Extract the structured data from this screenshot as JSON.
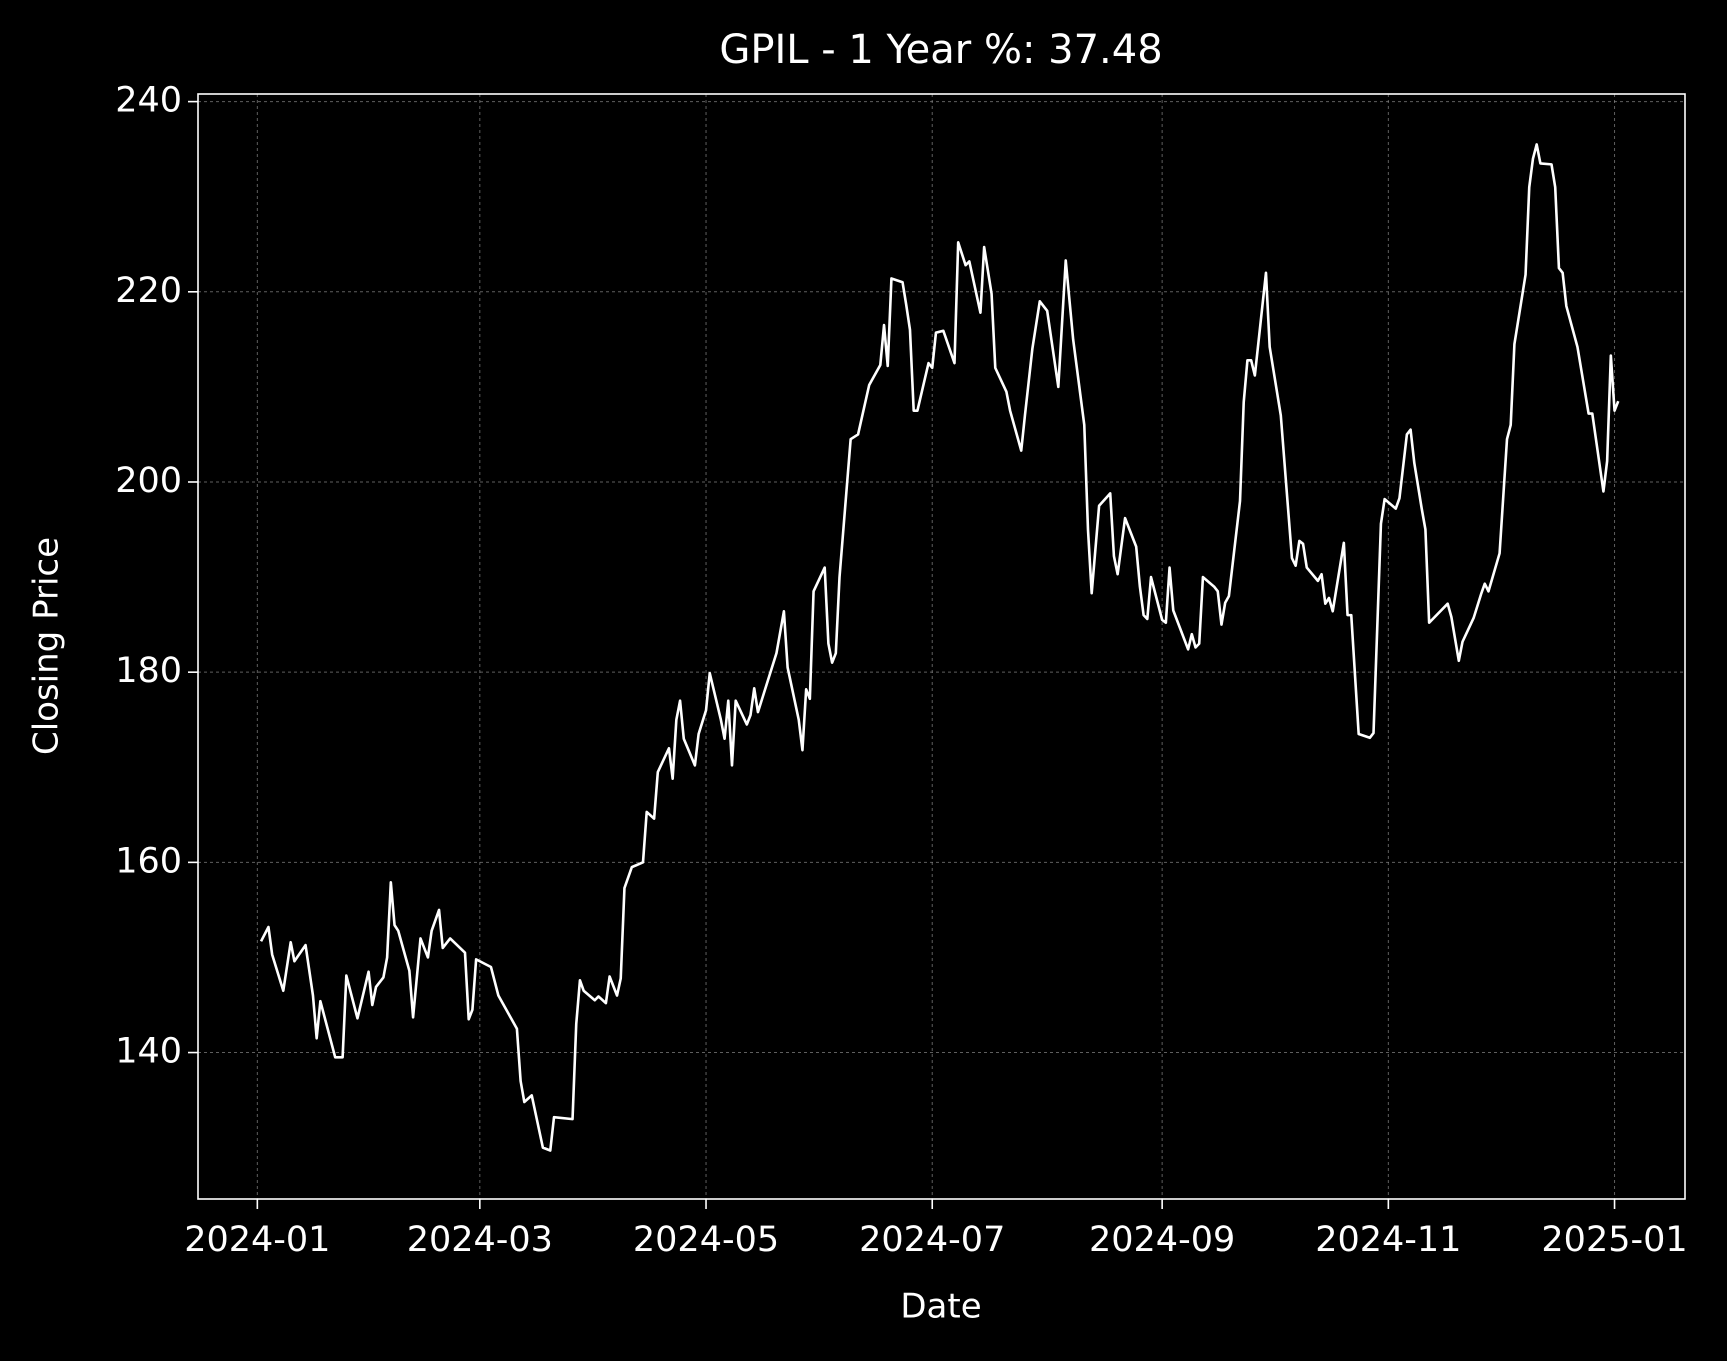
{
  "chart_data": {
    "type": "line",
    "title": "GPIL - 1 Year %: 37.48",
    "xlabel": "Date",
    "ylabel": "Closing Price",
    "color": "#ffffff",
    "grid": true,
    "xlim": [
      "2023-12-16",
      "2025-01-20"
    ],
    "ylim": [
      124.6,
      240.8
    ],
    "xticks": [
      {
        "value": "2024-01-01",
        "label": "2024-01"
      },
      {
        "value": "2024-03-01",
        "label": "2024-03"
      },
      {
        "value": "2024-05-01",
        "label": "2024-05"
      },
      {
        "value": "2024-07-01",
        "label": "2024-07"
      },
      {
        "value": "2024-09-01",
        "label": "2024-09"
      },
      {
        "value": "2024-11-01",
        "label": "2024-11"
      },
      {
        "value": "2025-01-01",
        "label": "2025-01"
      }
    ],
    "yticks": [
      140,
      160,
      180,
      200,
      220,
      240
    ],
    "x": [
      "2024-01-02",
      "2024-01-04",
      "2024-01-05",
      "2024-01-08",
      "2024-01-10",
      "2024-01-11",
      "2024-01-14",
      "2024-01-16",
      "2024-01-17",
      "2024-01-18",
      "2024-01-22",
      "2024-01-24",
      "2024-01-25",
      "2024-01-28",
      "2024-01-31",
      "2024-02-01",
      "2024-02-02",
      "2024-02-04",
      "2024-02-05",
      "2024-02-06",
      "2024-02-07",
      "2024-02-08",
      "2024-02-11",
      "2024-02-12",
      "2024-02-14",
      "2024-02-16",
      "2024-02-17",
      "2024-02-19",
      "2024-02-20",
      "2024-02-22",
      "2024-02-26",
      "2024-02-27",
      "2024-02-28",
      "2024-02-29",
      "2024-03-04",
      "2024-03-06",
      "2024-03-11",
      "2024-03-12",
      "2024-03-13",
      "2024-03-15",
      "2024-03-18",
      "2024-03-20",
      "2024-03-21",
      "2024-03-26",
      "2024-03-27",
      "2024-03-28",
      "2024-03-29",
      "2024-04-01",
      "2024-04-02",
      "2024-04-04",
      "2024-04-05",
      "2024-04-07",
      "2024-04-08",
      "2024-04-09",
      "2024-04-11",
      "2024-04-14",
      "2024-04-15",
      "2024-04-17",
      "2024-04-18",
      "2024-04-21",
      "2024-04-22",
      "2024-04-23",
      "2024-04-24",
      "2024-04-25",
      "2024-04-28",
      "2024-04-29",
      "2024-05-01",
      "2024-05-02",
      "2024-05-05",
      "2024-05-06",
      "2024-05-07",
      "2024-05-08",
      "2024-05-09",
      "2024-05-12",
      "2024-05-13",
      "2024-05-14",
      "2024-05-15",
      "2024-05-20",
      "2024-05-22",
      "2024-05-23",
      "2024-05-26",
      "2024-05-27",
      "2024-05-28",
      "2024-05-29",
      "2024-05-30",
      "2024-06-02",
      "2024-06-03",
      "2024-06-04",
      "2024-06-05",
      "2024-06-06",
      "2024-06-09",
      "2024-06-11",
      "2024-06-14",
      "2024-06-17",
      "2024-06-18",
      "2024-06-19",
      "2024-06-20",
      "2024-06-23",
      "2024-06-24",
      "2024-06-25",
      "2024-06-26",
      "2024-06-27",
      "2024-06-30",
      "2024-07-01",
      "2024-07-02",
      "2024-07-04",
      "2024-07-07",
      "2024-07-08",
      "2024-07-10",
      "2024-07-11",
      "2024-07-14",
      "2024-07-15",
      "2024-07-17",
      "2024-07-18",
      "2024-07-21",
      "2024-07-22",
      "2024-07-25",
      "2024-07-26",
      "2024-07-28",
      "2024-07-30",
      "2024-08-01",
      "2024-08-04",
      "2024-08-06",
      "2024-08-08",
      "2024-08-11",
      "2024-08-12",
      "2024-08-13",
      "2024-08-15",
      "2024-08-18",
      "2024-08-19",
      "2024-08-20",
      "2024-08-22",
      "2024-08-25",
      "2024-08-26",
      "2024-08-27",
      "2024-08-28",
      "2024-08-29",
      "2024-09-01",
      "2024-09-02",
      "2024-09-03",
      "2024-09-04",
      "2024-09-08",
      "2024-09-09",
      "2024-09-10",
      "2024-09-11",
      "2024-09-12",
      "2024-09-15",
      "2024-09-16",
      "2024-09-17",
      "2024-09-18",
      "2024-09-19",
      "2024-09-22",
      "2024-09-23",
      "2024-09-24",
      "2024-09-25",
      "2024-09-26",
      "2024-09-29",
      "2024-09-30",
      "2024-10-03",
      "2024-10-06",
      "2024-10-07",
      "2024-10-08",
      "2024-10-09",
      "2024-10-10",
      "2024-10-13",
      "2024-10-14",
      "2024-10-15",
      "2024-10-16",
      "2024-10-17",
      "2024-10-20",
      "2024-10-21",
      "2024-10-22",
      "2024-10-24",
      "2024-10-27",
      "2024-10-28",
      "2024-10-30",
      "2024-10-31",
      "2024-11-03",
      "2024-11-04",
      "2024-11-06",
      "2024-11-07",
      "2024-11-08",
      "2024-11-10",
      "2024-11-11",
      "2024-11-12",
      "2024-11-17",
      "2024-11-18",
      "2024-11-20",
      "2024-11-21",
      "2024-11-24",
      "2024-11-26",
      "2024-11-27",
      "2024-11-28",
      "2024-12-01",
      "2024-12-03",
      "2024-12-04",
      "2024-12-05",
      "2024-12-08",
      "2024-12-09",
      "2024-12-10",
      "2024-12-11",
      "2024-12-12",
      "2024-12-15",
      "2024-12-16",
      "2024-12-17",
      "2024-12-18",
      "2024-12-19",
      "2024-12-22",
      "2024-12-25",
      "2024-12-26",
      "2024-12-29",
      "2024-12-30",
      "2024-12-31",
      "2025-01-01",
      "2025-01-02"
    ],
    "values": [
      151.7,
      153.2,
      150.3,
      146.5,
      151.6,
      149.6,
      151.3,
      146.0,
      141.5,
      145.4,
      139.5,
      139.5,
      148.1,
      143.6,
      148.5,
      145.0,
      146.9,
      147.9,
      150.0,
      157.9,
      153.4,
      152.8,
      148.6,
      143.7,
      152.0,
      150.0,
      152.8,
      155.0,
      151.0,
      152.0,
      150.5,
      143.5,
      144.5,
      149.8,
      149.0,
      146.0,
      142.5,
      137.0,
      134.8,
      135.5,
      130.0,
      129.7,
      133.2,
      133.0,
      143.0,
      147.6,
      146.5,
      145.5,
      145.9,
      145.2,
      148.0,
      146.0,
      147.8,
      157.3,
      159.5,
      160.0,
      165.3,
      164.6,
      169.5,
      172.0,
      168.8,
      175.0,
      177.0,
      173.0,
      170.2,
      173.5,
      176.0,
      179.9,
      175.0,
      173.0,
      177.0,
      170.2,
      177.0,
      174.5,
      175.5,
      178.3,
      175.8,
      182.0,
      186.4,
      180.5,
      175.0,
      171.8,
      178.2,
      177.2,
      188.5,
      191.0,
      183.0,
      181.0,
      182.0,
      190.0,
      204.5,
      205.0,
      210.2,
      212.3,
      216.5,
      212.2,
      221.4,
      221.0,
      218.6,
      216.0,
      207.5,
      207.5,
      212.5,
      212.0,
      215.7,
      215.9,
      212.5,
      225.2,
      222.8,
      223.2,
      217.8,
      224.7,
      219.8,
      212.0,
      209.5,
      207.5,
      203.3,
      207.0,
      214.0,
      219.0,
      218.0,
      210.0,
      223.3,
      215.0,
      206.0,
      195.0,
      188.3,
      197.5,
      198.8,
      192.2,
      190.3,
      196.2,
      193.2,
      189.0,
      186.0,
      185.6,
      190.0,
      185.5,
      185.2,
      191.0,
      186.5,
      182.4,
      184.0,
      182.6,
      183.0,
      190.0,
      189.0,
      188.5,
      185.0,
      187.3,
      188.0,
      198.0,
      208.4,
      212.8,
      212.8,
      211.2,
      222.0,
      214.2,
      207.0,
      192.0,
      191.2,
      193.8,
      193.5,
      191.0,
      189.6,
      190.3,
      187.2,
      187.8,
      186.4,
      193.6,
      186.0,
      186.0,
      173.5,
      173.1,
      173.6,
      195.6,
      198.2,
      197.2,
      198.3,
      205.0,
      205.5,
      202.0,
      197.2,
      195.0,
      185.2,
      187.2,
      185.8,
      181.2,
      183.2,
      185.7,
      188.2,
      189.3,
      188.5,
      192.5,
      204.5,
      206.0,
      214.5,
      221.8,
      231.0,
      234.0,
      235.5,
      233.5,
      233.4,
      231.0,
      222.5,
      222.0,
      218.5,
      214.2,
      207.2,
      207.2,
      199.0,
      202.2,
      213.3,
      207.5,
      208.5
    ]
  }
}
